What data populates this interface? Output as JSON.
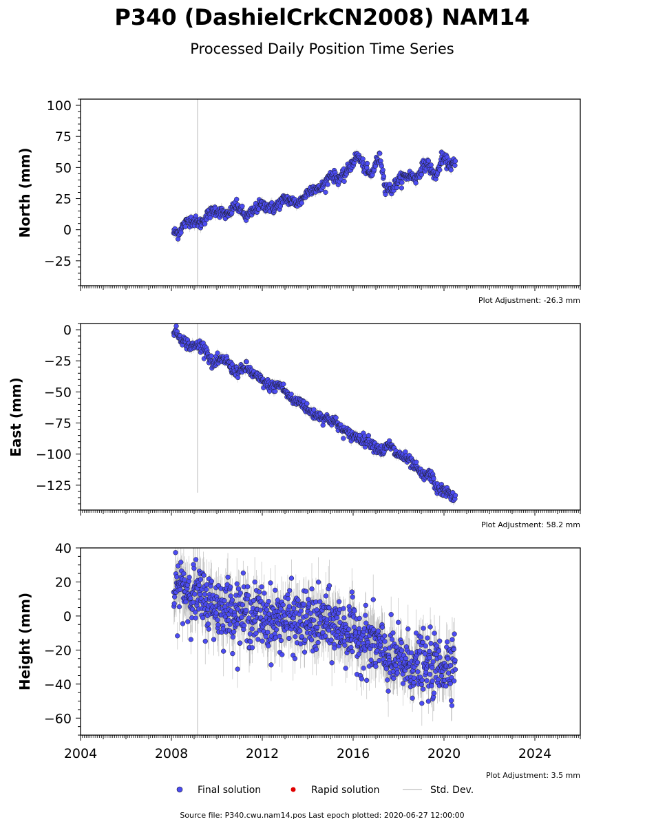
{
  "title": "P340 (DashielCrkCN2008) NAM14",
  "subtitle": "Processed Daily Position Time Series",
  "legend": {
    "final": "Final solution",
    "rapid": "Rapid solution",
    "stddev": "Std. Dev."
  },
  "footer": "Source file: P340.cwu.nam14.pos  Last epoch plotted: 2020-06-27 12:00:00",
  "colors": {
    "final_fill": "#4c4cf2",
    "final_edge": "#1a1a1a",
    "rapid_fill": "#e00000",
    "stddev": "#c8c8c8",
    "vline": "#d0d0d0"
  },
  "chart_data": [
    {
      "type": "scatter",
      "ylabel": "North (mm)",
      "adjustment": "Plot Adjustment: -26.3 mm",
      "xlim": [
        2004,
        2026
      ],
      "ylim": [
        -45,
        105
      ],
      "yticks": [
        -25,
        0,
        25,
        50,
        75,
        100
      ],
      "yminor": 5,
      "vline": 2009.15,
      "data_range": [
        2008.1,
        2020.5
      ],
      "vline_range": [
        -45,
        105
      ],
      "series": [
        {
          "x": [
            2008.1,
            2008.3,
            2008.5,
            2008.8,
            2009.0,
            2009.3,
            2009.6,
            2009.9,
            2010.2,
            2010.5,
            2010.8,
            2011.0,
            2011.3,
            2011.6,
            2011.9,
            2012.2,
            2012.5,
            2012.8,
            2013.0,
            2013.3,
            2013.6,
            2013.9,
            2014.2,
            2014.5,
            2014.8,
            2015.0,
            2015.3,
            2015.6,
            2015.9,
            2016.2,
            2016.5,
            2016.8,
            2017.0,
            2017.2,
            2017.4,
            2017.7,
            2017.9,
            2018.2,
            2018.5,
            2018.8,
            2019.0,
            2019.3,
            2019.5,
            2019.7,
            2019.9,
            2020.1,
            2020.3,
            2020.5
          ],
          "y": [
            -2,
            -3,
            3,
            8,
            7,
            5,
            12,
            16,
            14,
            11,
            20,
            17,
            10,
            15,
            20,
            19,
            17,
            22,
            25,
            23,
            21,
            28,
            34,
            32,
            38,
            45,
            41,
            43,
            52,
            60,
            50,
            43,
            54,
            58,
            35,
            32,
            38,
            42,
            44,
            41,
            50,
            53,
            45,
            44,
            58,
            55,
            52,
            53
          ]
        }
      ]
    },
    {
      "type": "scatter",
      "ylabel": "East (mm)",
      "adjustment": "Plot Adjustment: 58.2 mm",
      "xlim": [
        2004,
        2026
      ],
      "ylim": [
        -145,
        5
      ],
      "yticks": [
        -125,
        -100,
        -75,
        -50,
        -25,
        0
      ],
      "yminor": 5,
      "vline": 2009.15,
      "data_range": [
        2008.1,
        2020.5
      ],
      "vline_range": [
        -131,
        5
      ],
      "series": [
        {
          "x": [
            2008.1,
            2008.3,
            2008.6,
            2008.9,
            2009.2,
            2009.5,
            2009.8,
            2010.1,
            2010.4,
            2010.7,
            2011.0,
            2011.3,
            2011.6,
            2011.9,
            2012.2,
            2012.5,
            2012.8,
            2013.1,
            2013.4,
            2013.7,
            2014.0,
            2014.3,
            2014.6,
            2014.9,
            2015.2,
            2015.5,
            2015.8,
            2016.1,
            2016.4,
            2016.7,
            2017.0,
            2017.3,
            2017.6,
            2017.9,
            2018.2,
            2018.5,
            2018.8,
            2019.1,
            2019.4,
            2019.7,
            2020.0,
            2020.3,
            2020.5
          ],
          "y": [
            0,
            -4,
            -10,
            -14,
            -12,
            -15,
            -28,
            -25,
            -24,
            -32,
            -34,
            -30,
            -36,
            -40,
            -44,
            -46,
            -44,
            -52,
            -58,
            -57,
            -65,
            -68,
            -70,
            -72,
            -74,
            -80,
            -84,
            -86,
            -88,
            -90,
            -94,
            -98,
            -92,
            -100,
            -102,
            -106,
            -112,
            -118,
            -116,
            -128,
            -130,
            -132,
            -137
          ]
        }
      ]
    },
    {
      "type": "scatter",
      "ylabel": "Height (mm)",
      "adjustment": "Plot Adjustment: 3.5 mm",
      "xlim": [
        2004,
        2026
      ],
      "xticks": [
        2004,
        2008,
        2012,
        2016,
        2020,
        2024
      ],
      "ylim": [
        -70,
        40
      ],
      "yticks": [
        -60,
        -40,
        -20,
        0,
        20,
        40
      ],
      "yminor": 5,
      "vline": 2009.15,
      "data_range": [
        2008.1,
        2020.5
      ],
      "vline_range": [
        -70,
        40
      ],
      "series": [
        {
          "x": [
            2008.1,
            2008.4,
            2008.7,
            2009.0,
            2009.3,
            2009.6,
            2009.9,
            2010.2,
            2010.5,
            2010.8,
            2011.1,
            2011.4,
            2011.7,
            2012.0,
            2012.3,
            2012.6,
            2012.9,
            2013.2,
            2013.5,
            2013.8,
            2014.1,
            2014.4,
            2014.7,
            2015.0,
            2015.3,
            2015.6,
            2015.9,
            2016.2,
            2016.5,
            2016.8,
            2017.1,
            2017.4,
            2017.7,
            2018.0,
            2018.3,
            2018.6,
            2018.9,
            2019.2,
            2019.5,
            2019.8,
            2020.1,
            2020.3,
            2020.5
          ],
          "y": [
            12,
            18,
            15,
            14,
            10,
            8,
            6,
            5,
            4,
            3,
            2,
            1,
            0,
            0,
            -2,
            -3,
            -1,
            -2,
            -4,
            -3,
            -4,
            -5,
            -3,
            -6,
            -6,
            -8,
            -10,
            -12,
            -14,
            -16,
            -18,
            -24,
            -26,
            -27,
            -28,
            -28,
            -29,
            -30,
            -30,
            -30,
            -28,
            -26,
            -24
          ]
        }
      ]
    }
  ]
}
